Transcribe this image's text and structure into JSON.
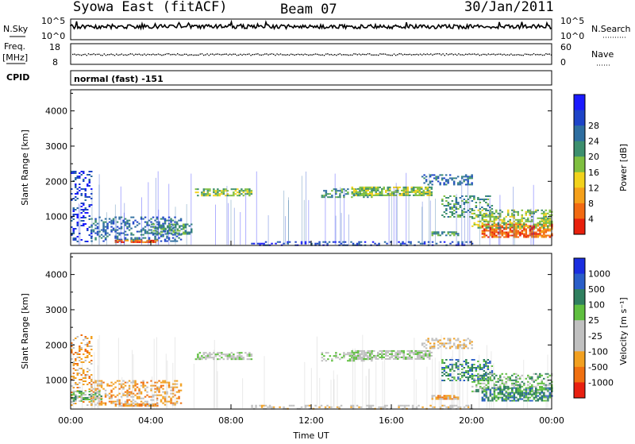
{
  "header": {
    "station": "Syowa East (fitACF)",
    "beam": "Beam 07",
    "date": "30/Jan/2011"
  },
  "panels": {
    "nsky_label": "N.Sky",
    "nsearch_label": "N.Search",
    "nsky_ticks": [
      "10^5",
      "10^0"
    ],
    "nsearch_ticks": [
      "10^5",
      "10^0"
    ],
    "freq_label_1": "Freq.",
    "freq_label_2": "[MHz]",
    "freq_ticks": [
      "18",
      "8"
    ],
    "nave_label": "Nave",
    "nave_ticks": [
      "60",
      "0"
    ],
    "cpid_label": "CPID",
    "cpid_value": "normal (fast) -151"
  },
  "colors": {
    "power": [
      "#1a1aff",
      "#1e44c8",
      "#2e6ea0",
      "#3d8f6e",
      "#7fbf40",
      "#f2d21c",
      "#f5a01a",
      "#f26a12",
      "#e8200c"
    ],
    "velocity": [
      "#1a2ee0",
      "#2a5ec8",
      "#2f7f5f",
      "#5fbf3f",
      "#c0c0c0",
      "#c0c0c0",
      "#f2a020",
      "#f07010",
      "#e82010"
    ]
  },
  "chart_data": [
    {
      "type": "heatmap",
      "name_key": "power",
      "xlabel": "",
      "ylabel": "Slant Range [km]",
      "x_ticks": [
        "00:00",
        "04:00",
        "08:00",
        "12:00",
        "16:00",
        "20:00",
        "00:00"
      ],
      "xlim": [
        0,
        24
      ],
      "ylim": [
        180,
        4600
      ],
      "y_ticks": [
        1000,
        2000,
        3000,
        4000
      ],
      "colorbar_label": "Power [dB]",
      "colorbar_ticks": [
        "4",
        "8",
        "12",
        "16",
        "20",
        "24",
        "28"
      ],
      "regions": [
        {
          "t": [
            0.0,
            1.0
          ],
          "r": [
            300,
            2300
          ],
          "dens": 0.3,
          "lv": 1
        },
        {
          "t": [
            1.0,
            5.5
          ],
          "r": [
            300,
            1000
          ],
          "dens": 0.4,
          "lv": 2
        },
        {
          "t": [
            2.2,
            4.3
          ],
          "r": [
            250,
            340
          ],
          "dens": 0.85,
          "lv": 7
        },
        {
          "t": [
            4.0,
            6.0
          ],
          "r": [
            500,
            800
          ],
          "dens": 0.6,
          "lv": 3
        },
        {
          "t": [
            6.2,
            9.0
          ],
          "r": [
            1600,
            1800
          ],
          "dens": 0.6,
          "lv": 4
        },
        {
          "t": [
            12.5,
            15.0
          ],
          "r": [
            1550,
            1800
          ],
          "dens": 0.45,
          "lv": 3
        },
        {
          "t": [
            14.0,
            18.0
          ],
          "r": [
            1600,
            1850
          ],
          "dens": 0.7,
          "lv": 4
        },
        {
          "t": [
            17.5,
            20.0
          ],
          "r": [
            1900,
            2200
          ],
          "dens": 0.4,
          "lv": 2
        },
        {
          "t": [
            18.5,
            21.0
          ],
          "r": [
            1000,
            1600
          ],
          "dens": 0.4,
          "lv": 3
        },
        {
          "t": [
            20.5,
            24.0
          ],
          "r": [
            400,
            800
          ],
          "dens": 0.75,
          "lv": 7
        },
        {
          "t": [
            20.0,
            24.0
          ],
          "r": [
            700,
            1200
          ],
          "dens": 0.5,
          "lv": 4
        },
        {
          "t": [
            18.0,
            19.3
          ],
          "r": [
            450,
            580
          ],
          "dens": 0.7,
          "lv": 3
        },
        {
          "t": [
            9.0,
            20.0
          ],
          "r": [
            200,
            300
          ],
          "dens": 0.35,
          "lv": 1
        }
      ]
    },
    {
      "type": "heatmap",
      "name_key": "velocity",
      "xlabel": "Time UT",
      "ylabel": "Slant Range [km]",
      "x_ticks": [
        "00:00",
        "04:00",
        "08:00",
        "12:00",
        "16:00",
        "20:00",
        "00:00"
      ],
      "xlim": [
        0,
        24
      ],
      "ylim": [
        180,
        4600
      ],
      "y_ticks": [
        1000,
        2000,
        3000,
        4000
      ],
      "colorbar_label": "Velocity [m s⁻¹]",
      "colorbar_ticks": [
        "1000",
        "500",
        "100",
        "25",
        "-25",
        "-100",
        "-500",
        "-1000"
      ],
      "regions": [
        {
          "t": [
            0.0,
            1.0
          ],
          "r": [
            300,
            2300
          ],
          "dens": 0.3,
          "lv": 6
        },
        {
          "t": [
            1.0,
            5.5
          ],
          "r": [
            300,
            1000
          ],
          "dens": 0.4,
          "lv": 6
        },
        {
          "t": [
            2.2,
            4.3
          ],
          "r": [
            250,
            340
          ],
          "dens": 0.85,
          "lv": 6
        },
        {
          "t": [
            0.0,
            1.5
          ],
          "r": [
            400,
            700
          ],
          "dens": 0.6,
          "lv": 3
        },
        {
          "t": [
            6.2,
            9.0
          ],
          "r": [
            1600,
            1800
          ],
          "dens": 0.6,
          "lv": 4
        },
        {
          "t": [
            12.5,
            15.0
          ],
          "r": [
            1550,
            1800
          ],
          "dens": 0.45,
          "lv": 4
        },
        {
          "t": [
            14.0,
            18.0
          ],
          "r": [
            1600,
            1850
          ],
          "dens": 0.7,
          "lv": 4
        },
        {
          "t": [
            17.5,
            20.0
          ],
          "r": [
            1900,
            2200
          ],
          "dens": 0.4,
          "lv": 5
        },
        {
          "t": [
            18.5,
            21.0
          ],
          "r": [
            1000,
            1600
          ],
          "dens": 0.45,
          "lv": 2
        },
        {
          "t": [
            20.5,
            24.0
          ],
          "r": [
            400,
            800
          ],
          "dens": 0.7,
          "lv": 2
        },
        {
          "t": [
            20.0,
            24.0
          ],
          "r": [
            700,
            1200
          ],
          "dens": 0.45,
          "lv": 3
        },
        {
          "t": [
            18.0,
            19.3
          ],
          "r": [
            450,
            580
          ],
          "dens": 0.7,
          "lv": 6
        },
        {
          "t": [
            9.0,
            20.0
          ],
          "r": [
            200,
            300
          ],
          "dens": 0.35,
          "lv": 5
        }
      ]
    }
  ]
}
